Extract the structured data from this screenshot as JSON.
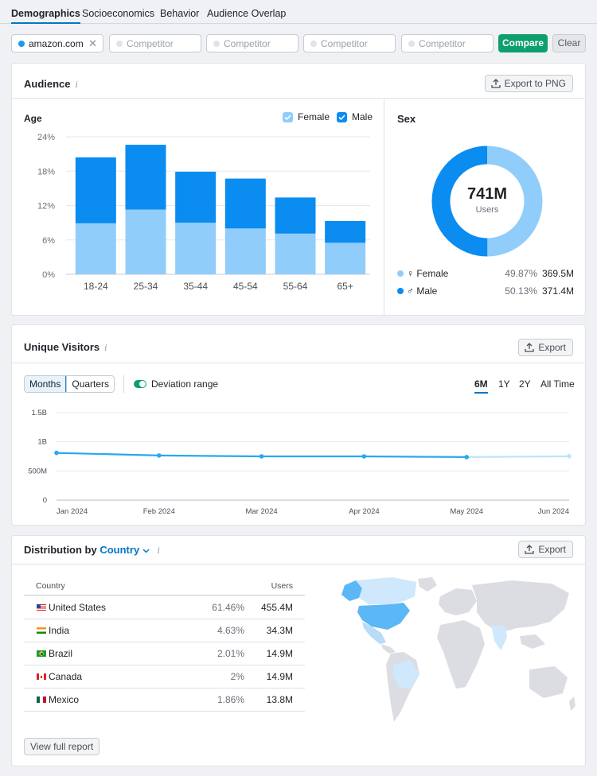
{
  "tabs": [
    {
      "label": "Demographics",
      "active": true
    },
    {
      "label": "Socioeconomics",
      "active": false
    },
    {
      "label": "Behavior",
      "active": false
    },
    {
      "label": "Audience Overlap",
      "active": false
    }
  ],
  "domains": {
    "primary": "amazon.com",
    "competitor_placeholder": "Competitor",
    "compare_label": "Compare",
    "clear_label": "Clear"
  },
  "audience": {
    "title": "Audience",
    "export_label": "Export to PNG",
    "age_title": "Age",
    "legend_female": "Female",
    "legend_male": "Male",
    "sex_title": "Sex",
    "total": "741M",
    "total_sub": "Users",
    "female": {
      "label": "Female",
      "pct": "49.87%",
      "value": "369.5M"
    },
    "male": {
      "label": "Male",
      "pct": "50.13%",
      "value": "371.4M"
    }
  },
  "visitors": {
    "title": "Unique Visitors",
    "export_label": "Export",
    "seg_months": "Months",
    "seg_quarters": "Quarters",
    "deviation_label": "Deviation range",
    "ranges": [
      "6M",
      "1Y",
      "2Y",
      "All Time"
    ]
  },
  "distribution": {
    "title_prefix": "Distribution by",
    "title_link": "Country",
    "export_label": "Export",
    "col_country": "Country",
    "col_users": "Users",
    "rows": [
      {
        "country": "United States",
        "pct": "61.46%",
        "users": "455.4M",
        "flag": "us"
      },
      {
        "country": "India",
        "pct": "4.63%",
        "users": "34.3M",
        "flag": "in"
      },
      {
        "country": "Brazil",
        "pct": "2.01%",
        "users": "14.9M",
        "flag": "br"
      },
      {
        "country": "Canada",
        "pct": "2%",
        "users": "14.9M",
        "flag": "ca"
      },
      {
        "country": "Mexico",
        "pct": "1.86%",
        "users": "13.8M",
        "flag": "mx"
      }
    ],
    "view_full_label": "View full report"
  },
  "colors": {
    "male": "#0a8cf0",
    "female": "#90cdfb",
    "accent": "#0077c8",
    "compare": "#0e9f6e",
    "line": "#29a8f0"
  },
  "chart_data": [
    {
      "type": "bar",
      "title": "Age",
      "stacked": true,
      "categories": [
        "18-24",
        "25-34",
        "35-44",
        "45-54",
        "55-64",
        "65+"
      ],
      "series": [
        {
          "name": "Female",
          "values": [
            8.9,
            11.3,
            9.0,
            8.0,
            7.1,
            5.5
          ]
        },
        {
          "name": "Male",
          "values": [
            11.5,
            11.3,
            8.9,
            8.7,
            6.3,
            3.8
          ]
        }
      ],
      "yticks": [
        "0%",
        "6%",
        "12%",
        "18%",
        "24%"
      ],
      "ylim": [
        0,
        24
      ],
      "legend": "top-right",
      "grid": true
    },
    {
      "type": "pie",
      "title": "Sex",
      "labels": [
        "Female",
        "Male"
      ],
      "values": [
        49.87,
        50.13
      ]
    },
    {
      "type": "line",
      "title": "Unique Visitors",
      "x": [
        "Jan 2024",
        "Feb 2024",
        "Mar 2024",
        "Apr 2024",
        "May 2024",
        "Jun 2024"
      ],
      "values": [
        810,
        765,
        750,
        750,
        738,
        752
      ],
      "yticks": [
        "0",
        "500M",
        "1B",
        "1.5B"
      ],
      "ylim": [
        0,
        1500
      ],
      "grid": true
    }
  ]
}
